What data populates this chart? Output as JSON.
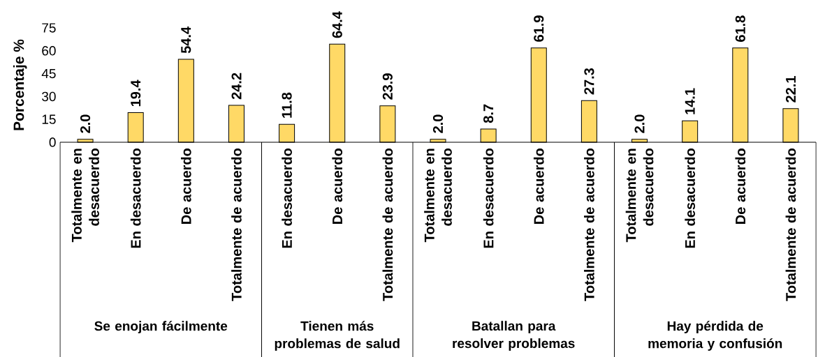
{
  "chart_data": {
    "type": "bar",
    "ylabel": "Porcentaje %",
    "categories": [
      "Totalmente en desacuerdo",
      "En desacuerdo",
      "De acuerdo",
      "Totalmente de acuerdo",
      "En desacuerdo",
      "De acuerdo",
      "Totalmente de acuerdo",
      "Totalmente en desacuerdo",
      "En desacuerdo",
      "De acuerdo",
      "Totalmente de acuerdo",
      "Totalmente en desacuerdo",
      "En desacuerdo",
      "De acuerdo",
      "Totalmente de acuerdo"
    ],
    "values": [
      2.0,
      19.4,
      54.4,
      24.2,
      11.8,
      64.4,
      23.9,
      2.0,
      8.7,
      61.9,
      27.3,
      2.0,
      14.1,
      61.8,
      22.1
    ],
    "value_labels": [
      "2.0",
      "19.4",
      "54.4",
      "24.2",
      "11.8",
      "64.4",
      "23.9",
      "2.0",
      "8.7",
      "61.9",
      "27.3",
      "2.0",
      "14.1",
      "61.8",
      "22.1"
    ],
    "color": "#ffd966",
    "ylim": [
      0,
      75
    ],
    "yticks": [
      0,
      15,
      30,
      45,
      60,
      75
    ],
    "annotations": [
      "Se enojan fácilmente",
      "Tienen más problemas de salud",
      "Batallan para resolver problemas",
      "Hay pérdida de memoria y confusión"
    ]
  }
}
